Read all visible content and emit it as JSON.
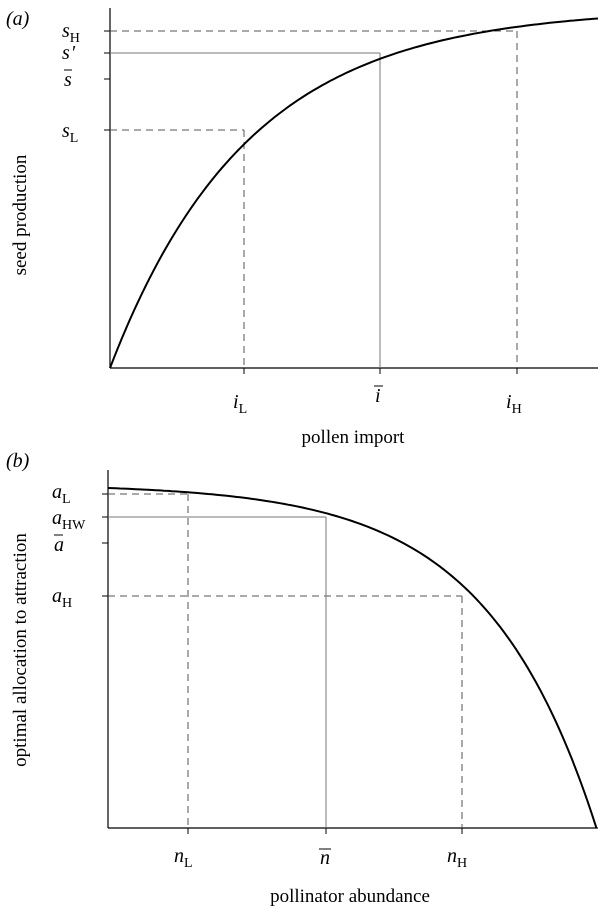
{
  "panel_a": {
    "panel_label": "(a)",
    "xlabel": "pollen import",
    "ylabel": "seed production",
    "y_ticks": [
      {
        "main": "s",
        "sub": "H",
        "bar": false,
        "prime": false
      },
      {
        "main": "s",
        "sub": "",
        "bar": false,
        "prime": true
      },
      {
        "main": "s",
        "sub": "",
        "bar": true,
        "prime": false
      },
      {
        "main": "s",
        "sub": "L",
        "bar": false,
        "prime": false
      }
    ],
    "x_ticks": [
      {
        "main": "i",
        "sub": "L",
        "bar": false
      },
      {
        "main": "i",
        "sub": "",
        "bar": true
      },
      {
        "main": "i",
        "sub": "H",
        "bar": false
      }
    ]
  },
  "panel_b": {
    "panel_label": "(b)",
    "xlabel": "pollinator abundance",
    "ylabel": "optimal allocation to attraction",
    "y_ticks": [
      {
        "main": "a",
        "sub": "L",
        "bar": false
      },
      {
        "main": "a",
        "sub": "HW",
        "bar": false
      },
      {
        "main": "a",
        "sub": "",
        "bar": true
      },
      {
        "main": "a",
        "sub": "H",
        "bar": false
      }
    ],
    "x_ticks": [
      {
        "main": "n",
        "sub": "L",
        "bar": false
      },
      {
        "main": "n",
        "sub": "",
        "bar": true
      },
      {
        "main": "n",
        "sub": "H",
        "bar": false
      }
    ]
  },
  "colors": {
    "curve": "#000000",
    "dashed": "#555555",
    "solid_guide": "#777777"
  }
}
